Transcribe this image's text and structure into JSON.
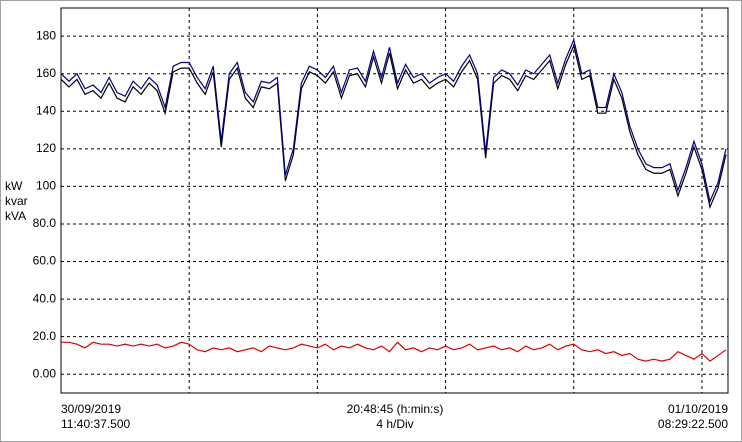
{
  "chart_data": {
    "type": "line",
    "start_date": "30/09/2019",
    "start_time": "11:40:37.500",
    "span_label": "20:48:45 (h:min:s)",
    "division_label": "4 h/Div",
    "end_date": "01/10/2019",
    "end_time": "08:29:22.500",
    "xlim": [
      0,
      20.8125
    ],
    "xgrid": [
      4,
      8,
      12,
      16,
      20
    ],
    "ylim": [
      -10,
      195
    ],
    "yticks": [
      {
        "value": 0,
        "label": "0.00"
      },
      {
        "value": 20,
        "label": "20.0"
      },
      {
        "value": 40,
        "label": "40.0"
      },
      {
        "value": 60,
        "label": "60.0"
      },
      {
        "value": 80,
        "label": "80.0"
      },
      100,
      120,
      140,
      160,
      180
    ],
    "grid": true,
    "x": [
      0,
      0.25,
      0.5,
      0.75,
      1,
      1.25,
      1.5,
      1.75,
      2,
      2.25,
      2.5,
      2.75,
      3,
      3.25,
      3.5,
      3.75,
      4,
      4.25,
      4.5,
      4.75,
      5,
      5.25,
      5.5,
      5.75,
      6,
      6.25,
      6.5,
      6.75,
      7,
      7.25,
      7.5,
      7.75,
      8,
      8.25,
      8.5,
      8.75,
      9,
      9.25,
      9.5,
      9.75,
      10,
      10.25,
      10.5,
      10.75,
      11,
      11.25,
      11.5,
      11.75,
      12,
      12.25,
      12.5,
      12.75,
      13,
      13.25,
      13.5,
      13.75,
      14,
      14.25,
      14.5,
      14.75,
      15,
      15.25,
      15.5,
      15.75,
      16,
      16.25,
      16.5,
      16.75,
      17,
      17.25,
      17.5,
      17.75,
      18,
      18.25,
      18.5,
      18.75,
      19,
      19.25,
      19.5,
      19.75,
      20,
      20.25,
      20.5,
      20.75
    ],
    "series": [
      {
        "name": "kW",
        "color": "#000000",
        "values": [
          157,
          153,
          157,
          149,
          151,
          147,
          155,
          147,
          145,
          153,
          149,
          155,
          151,
          139,
          161,
          163,
          163,
          155,
          149,
          161,
          121,
          157,
          163,
          147,
          142,
          153,
          152,
          155,
          103,
          117,
          152,
          161,
          159,
          155,
          161,
          147,
          159,
          160,
          153,
          169,
          155,
          171,
          152,
          162,
          155,
          157,
          152,
          155,
          157,
          153,
          161,
          167,
          157,
          115,
          155,
          159,
          157,
          151,
          159,
          157,
          162,
          167,
          152,
          165,
          175,
          157,
          159,
          139,
          139,
          157,
          147,
          129,
          117,
          109,
          107,
          107,
          109,
          95,
          107,
          121,
          109,
          89,
          99,
          117
        ]
      },
      {
        "name": "kvar",
        "color": "#e00000",
        "values": [
          17,
          17,
          16,
          14,
          17,
          16,
          16,
          15,
          16,
          15,
          16,
          15,
          16,
          14,
          15,
          17,
          16,
          13,
          12,
          14,
          13,
          14,
          12,
          13,
          14,
          12,
          15,
          14,
          13,
          14,
          16,
          15,
          14,
          16,
          13,
          15,
          14,
          16,
          14,
          13,
          15,
          12,
          17,
          13,
          14,
          12,
          14,
          13,
          15,
          13,
          14,
          16,
          13,
          14,
          15,
          13,
          14,
          12,
          15,
          13,
          14,
          16,
          13,
          15,
          16,
          13,
          12,
          13,
          11,
          12,
          10,
          11,
          8,
          7,
          8,
          7,
          8,
          12,
          10,
          8,
          11,
          7,
          10,
          13
        ]
      },
      {
        "name": "kVA",
        "color": "#000080",
        "values": [
          160,
          156,
          160,
          152,
          154,
          150,
          158,
          150,
          148,
          156,
          152,
          158,
          154,
          142,
          164,
          166,
          166,
          158,
          152,
          164,
          124,
          160,
          166,
          150,
          145,
          156,
          155,
          158,
          106,
          120,
          155,
          164,
          162,
          158,
          164,
          150,
          162,
          163,
          156,
          172,
          158,
          174,
          155,
          165,
          158,
          160,
          155,
          158,
          160,
          156,
          164,
          170,
          160,
          118,
          158,
          162,
          160,
          154,
          162,
          160,
          165,
          170,
          155,
          168,
          178,
          160,
          162,
          142,
          142,
          160,
          150,
          132,
          120,
          112,
          110,
          110,
          112,
          98,
          110,
          124,
          112,
          92,
          102,
          120
        ]
      }
    ]
  }
}
